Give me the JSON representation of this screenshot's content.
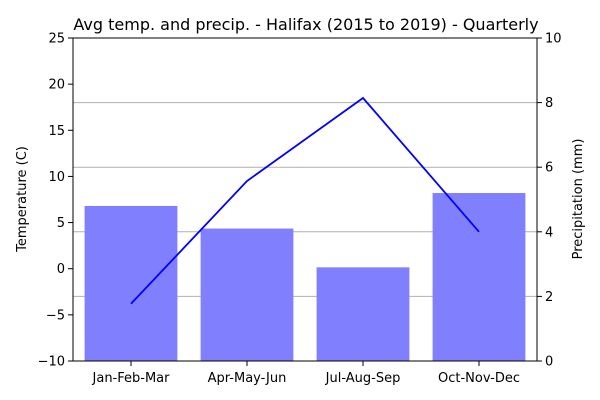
{
  "chart_data": {
    "type": "bar+line",
    "title": "Avg temp. and precip. - Halifax (2015 to 2019) - Quarterly",
    "categories": [
      "Jan-Feb-Mar",
      "Apr-May-Jun",
      "Jul-Aug-Sep",
      "Oct-Nov-Dec"
    ],
    "ylabel_left": "Temperature (C)",
    "ylabel_right": "Precipitation (mm)",
    "ylim_left": [
      -10,
      25
    ],
    "ylim_right": [
      0,
      10
    ],
    "yticks_left": [
      "-10",
      "-5",
      "0",
      "5",
      "10",
      "15",
      "20",
      "25"
    ],
    "yticks_right": [
      "0",
      "2",
      "4",
      "6",
      "8",
      "10"
    ],
    "grid": "right-axis horizontal",
    "line": {
      "axis": "left",
      "values": [
        -3.8,
        9.5,
        18.5,
        4.0
      ],
      "color": "#0000ff"
    },
    "bars": {
      "axis": "right",
      "values": [
        4.8,
        4.1,
        2.9,
        5.2
      ],
      "color": "#8080ff"
    }
  }
}
